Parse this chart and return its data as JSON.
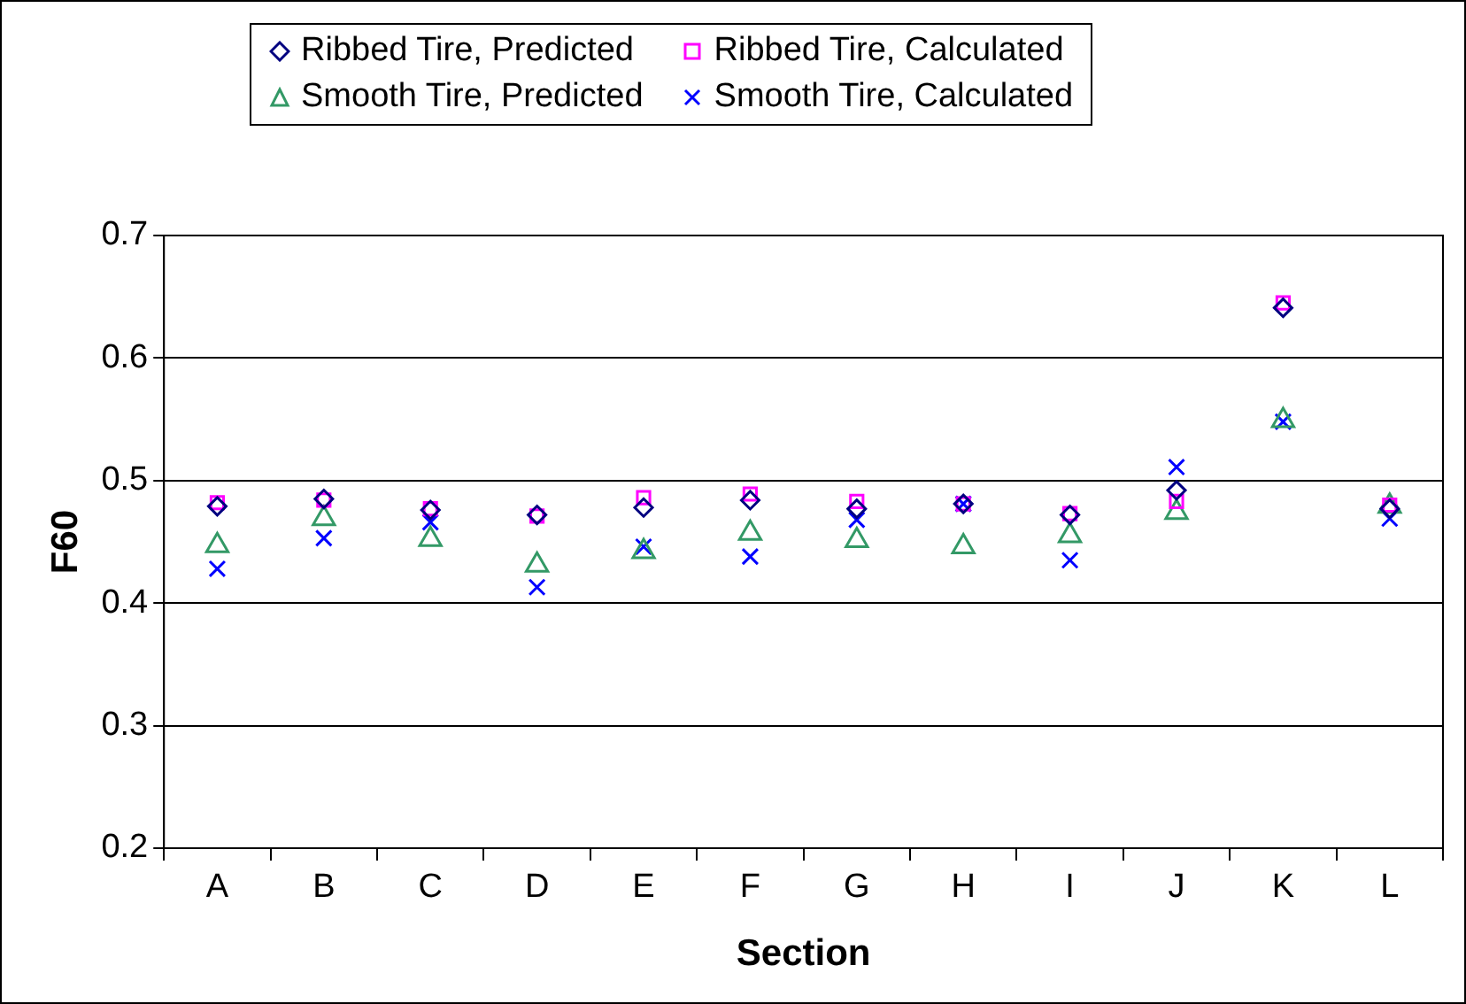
{
  "chart_data": {
    "type": "scatter",
    "xlabel": "Section",
    "ylabel": "F60",
    "categories": [
      "A",
      "B",
      "C",
      "D",
      "E",
      "F",
      "G",
      "H",
      "I",
      "J",
      "K",
      "L"
    ],
    "ylim": [
      0.2,
      0.7
    ],
    "yticks": [
      0.2,
      0.3,
      0.4,
      0.5,
      0.6,
      0.7
    ],
    "grid": "y",
    "legend": "top",
    "series": [
      {
        "name": "Ribbed Tire, Predicted",
        "color": "#000080",
        "marker": "diamond",
        "values": [
          0.479,
          0.485,
          0.476,
          0.472,
          0.478,
          0.484,
          0.477,
          0.481,
          0.472,
          0.492,
          0.641,
          0.477
        ]
      },
      {
        "name": "Ribbed Tire, Calculated",
        "color": "#ff00ff",
        "marker": "square",
        "values": [
          0.482,
          0.484,
          0.477,
          0.471,
          0.486,
          0.489,
          0.483,
          0.481,
          0.473,
          0.483,
          0.645,
          0.48
        ]
      },
      {
        "name": "Smooth Tire, Predicted",
        "color": "#339966",
        "marker": "triangle",
        "values": [
          0.447,
          0.469,
          0.452,
          0.431,
          0.442,
          0.457,
          0.451,
          0.446,
          0.455,
          0.474,
          0.549,
          0.479
        ]
      },
      {
        "name": "Smooth Tire, Calculated",
        "color": "#0000ff",
        "marker": "cross",
        "values": [
          0.428,
          0.453,
          0.466,
          0.413,
          0.446,
          0.438,
          0.468,
          0.481,
          0.435,
          0.511,
          0.548,
          0.469
        ]
      }
    ]
  }
}
